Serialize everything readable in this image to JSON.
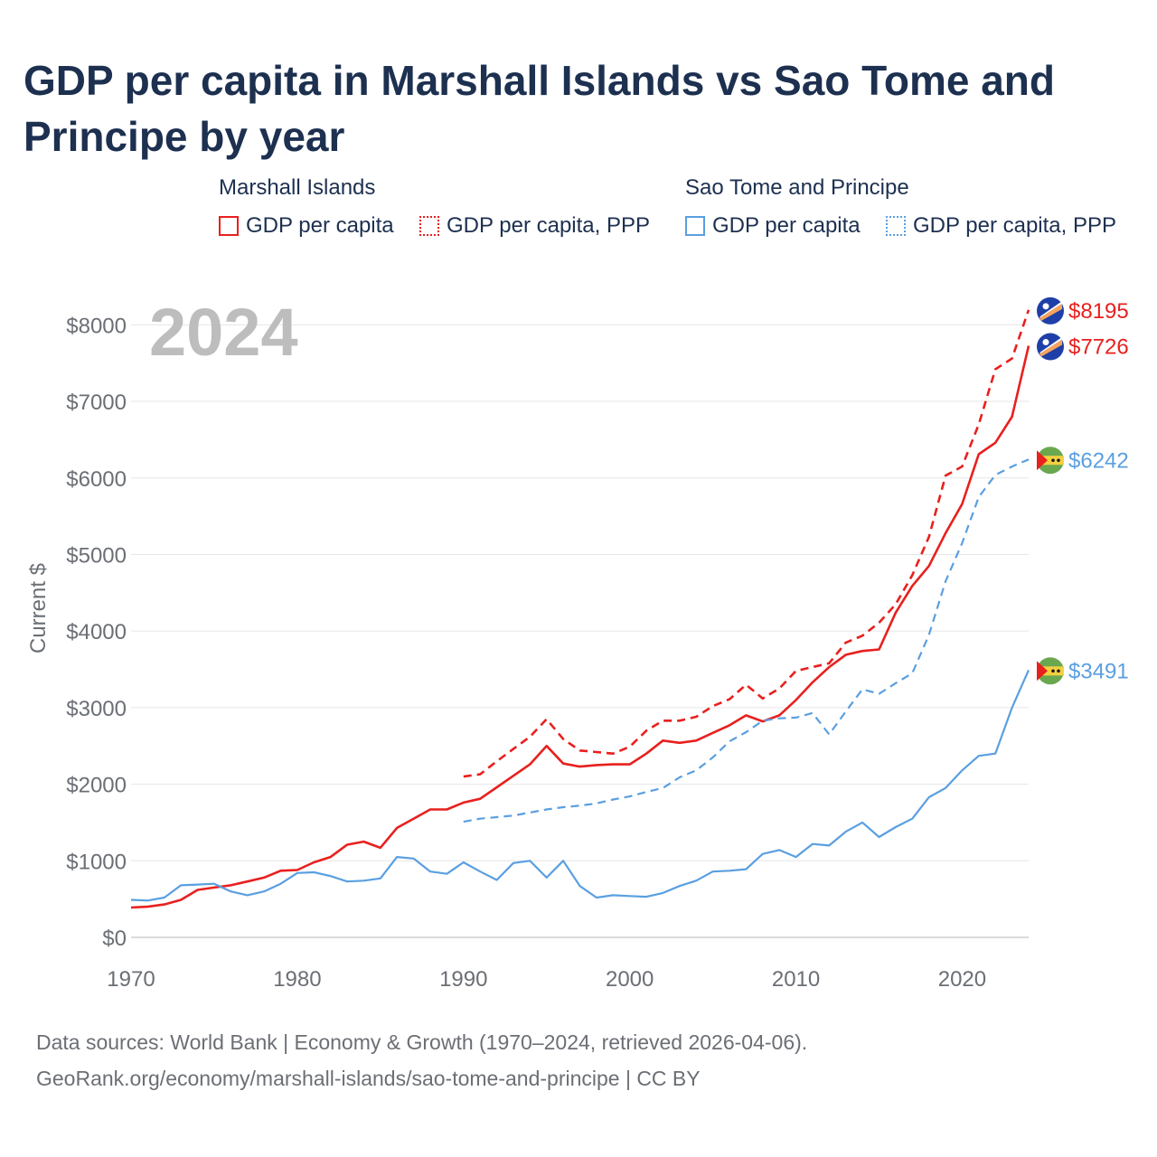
{
  "title": "GDP per capita in Marshall Islands vs Sao Tome and Principe by year",
  "legend": {
    "groups": [
      {
        "name": "Marshall Islands",
        "items": [
          "GDP per capita",
          "GDP per capita, PPP"
        ],
        "color": "#e8201e"
      },
      {
        "name": "Sao Tome and Principe",
        "items": [
          "GDP per capita",
          "GDP per capita, PPP"
        ],
        "color": "#5a9fe0"
      }
    ]
  },
  "year_watermark": "2024",
  "footer": {
    "line1": "Data sources: World Bank | Economy & Growth (1970–2024, retrieved 2026-04-06).",
    "line2": "GeoRank.org/economy/marshall-islands/sao-tome-and-principe | CC BY"
  },
  "chart_data": {
    "type": "line",
    "title": "GDP per capita in Marshall Islands vs Sao Tome and Principe by year",
    "xlabel": "",
    "ylabel": "Current $",
    "xlim": [
      1970,
      2024
    ],
    "ylim": [
      0,
      8500
    ],
    "xticks": [
      1970,
      1980,
      1990,
      2000,
      2010,
      2020
    ],
    "yticks": [
      0,
      1000,
      2000,
      3000,
      4000,
      5000,
      6000,
      7000,
      8000
    ],
    "ytick_labels": [
      "$0",
      "$1000",
      "$2000",
      "$3000",
      "$4000",
      "$5000",
      "$6000",
      "$7000",
      "$8000"
    ],
    "series": [
      {
        "name": "Marshall Islands — GDP per capita",
        "color": "#e8201e",
        "style": "solid",
        "end_label": "$7726",
        "x": [
          1970,
          1971,
          1972,
          1973,
          1974,
          1975,
          1976,
          1977,
          1978,
          1979,
          1980,
          1981,
          1982,
          1983,
          1984,
          1985,
          1986,
          1987,
          1988,
          1989,
          1990,
          1991,
          1992,
          1993,
          1994,
          1995,
          1996,
          1997,
          1998,
          1999,
          2000,
          2001,
          2002,
          2003,
          2004,
          2005,
          2006,
          2007,
          2008,
          2009,
          2010,
          2011,
          2012,
          2013,
          2014,
          2015,
          2016,
          2017,
          2018,
          2019,
          2020,
          2021,
          2022,
          2023,
          2024
        ],
        "values": [
          390,
          400,
          430,
          490,
          620,
          650,
          680,
          730,
          780,
          870,
          880,
          980,
          1050,
          1210,
          1250,
          1170,
          1430,
          1550,
          1670,
          1670,
          1760,
          1810,
          1960,
          2110,
          2260,
          2500,
          2270,
          2230,
          2250,
          2260,
          2260,
          2400,
          2570,
          2540,
          2570,
          2670,
          2770,
          2900,
          2820,
          2900,
          3100,
          3330,
          3530,
          3690,
          3740,
          3760,
          4240,
          4590,
          4850,
          5280,
          5660,
          6310,
          6460,
          6800,
          7726
        ]
      },
      {
        "name": "Marshall Islands — GDP per capita, PPP",
        "color": "#e8201e",
        "style": "dashed",
        "end_label": "$8195",
        "x": [
          1990,
          1991,
          1992,
          1993,
          1994,
          1995,
          1996,
          1997,
          1998,
          1999,
          2000,
          2001,
          2002,
          2003,
          2004,
          2005,
          2006,
          2007,
          2008,
          2009,
          2010,
          2011,
          2012,
          2013,
          2014,
          2015,
          2016,
          2017,
          2018,
          2019,
          2020,
          2021,
          2022,
          2023,
          2024
        ],
        "values": [
          2100,
          2130,
          2300,
          2460,
          2620,
          2850,
          2590,
          2440,
          2420,
          2400,
          2490,
          2700,
          2830,
          2830,
          2880,
          3020,
          3110,
          3300,
          3120,
          3250,
          3480,
          3530,
          3580,
          3850,
          3940,
          4110,
          4350,
          4730,
          5230,
          6030,
          6150,
          6700,
          7420,
          7560,
          8195
        ]
      },
      {
        "name": "Sao Tome and Principe — GDP per capita",
        "color": "#5a9fe0",
        "style": "solid",
        "end_label": "$3491",
        "x": [
          1970,
          1971,
          1972,
          1973,
          1974,
          1975,
          1976,
          1977,
          1978,
          1979,
          1980,
          1981,
          1982,
          1983,
          1984,
          1985,
          1986,
          1987,
          1988,
          1989,
          1990,
          1991,
          1992,
          1993,
          1994,
          1995,
          1996,
          1997,
          1998,
          1999,
          2000,
          2001,
          2002,
          2003,
          2004,
          2005,
          2006,
          2007,
          2008,
          2009,
          2010,
          2011,
          2012,
          2013,
          2014,
          2015,
          2016,
          2017,
          2018,
          2019,
          2020,
          2021,
          2022,
          2023,
          2024
        ],
        "values": [
          490,
          480,
          520,
          680,
          690,
          700,
          600,
          550,
          600,
          700,
          840,
          850,
          800,
          730,
          740,
          770,
          1050,
          1030,
          860,
          830,
          980,
          860,
          750,
          970,
          1000,
          780,
          1000,
          670,
          520,
          550,
          540,
          530,
          580,
          670,
          740,
          860,
          870,
          890,
          1090,
          1140,
          1050,
          1220,
          1200,
          1380,
          1500,
          1310,
          1440,
          1550,
          1830,
          1950,
          2180,
          2370,
          2400,
          3000,
          3491
        ]
      },
      {
        "name": "Sao Tome and Principe — GDP per capita, PPP",
        "color": "#5a9fe0",
        "style": "dashed",
        "end_label": "$6242",
        "x": [
          1990,
          1991,
          1992,
          1993,
          1994,
          1995,
          1996,
          1997,
          1998,
          1999,
          2000,
          2001,
          2002,
          2003,
          2004,
          2005,
          2006,
          2007,
          2008,
          2009,
          2010,
          2011,
          2012,
          2013,
          2014,
          2015,
          2016,
          2017,
          2018,
          2019,
          2020,
          2021,
          2022,
          2023,
          2024
        ],
        "values": [
          1510,
          1550,
          1570,
          1590,
          1630,
          1670,
          1700,
          1720,
          1750,
          1800,
          1840,
          1900,
          1950,
          2090,
          2180,
          2350,
          2560,
          2680,
          2830,
          2860,
          2870,
          2930,
          2650,
          2950,
          3240,
          3180,
          3320,
          3450,
          3950,
          4650,
          5150,
          5750,
          6040,
          6150,
          6242
        ]
      }
    ]
  }
}
